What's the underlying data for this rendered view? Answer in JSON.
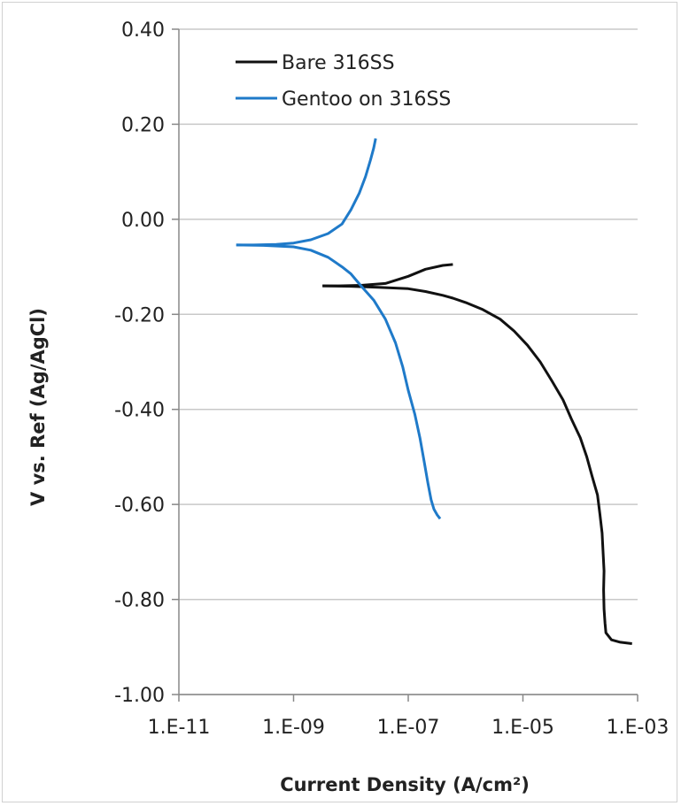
{
  "chart_data": {
    "type": "line",
    "title": "",
    "xlabel": "Current Density (A/cm²)",
    "ylabel": "V vs. Ref (Ag/AgCl)",
    "x_scale": "log",
    "xlim": [
      1e-11,
      0.001
    ],
    "ylim": [
      -1.0,
      0.4
    ],
    "x_ticks": [
      1e-11,
      1e-09,
      1e-07,
      1e-05,
      0.001
    ],
    "x_tick_labels": [
      "1.E-11",
      "1.E-09",
      "1.E-07",
      "1.E-05",
      "1.E-03"
    ],
    "y_ticks": [
      0.4,
      0.2,
      0.0,
      -0.2,
      -0.4,
      -0.6,
      -0.8,
      -1.0
    ],
    "y_tick_labels": [
      "0.40",
      "0.20",
      "0.00",
      "-0.20",
      "-0.40",
      "-0.60",
      "-0.80",
      "-1.00"
    ],
    "grid": "horizontal",
    "legend_position": "top-left",
    "series": [
      {
        "name": "Bare 316SS",
        "color": "#111111",
        "branches": [
          {
            "x": [
              3.2e-09,
              6e-09,
              1.5e-08,
              4e-08,
              1e-07,
              2e-07,
              4e-07,
              6e-07
            ],
            "y": [
              -0.14,
              -0.14,
              -0.139,
              -0.135,
              -0.12,
              -0.105,
              -0.097,
              -0.095
            ]
          },
          {
            "x": [
              3.2e-09,
              1e-08,
              3e-08,
              1e-07,
              2e-07,
              4e-07,
              6e-07,
              1e-06,
              2e-06,
              4e-06,
              7e-06,
              1.2e-05,
              2e-05,
              3.2e-05,
              5e-05,
              7e-05,
              0.0001,
              0.00013,
              0.00016,
              0.0002,
              0.00022,
              0.00024,
              0.00025,
              0.00026,
              0.000255,
              0.00026,
              0.00027,
              0.00028,
              0.00035,
              0.0005,
              0.0008
            ],
            "y": [
              -0.14,
              -0.141,
              -0.143,
              -0.146,
              -0.152,
              -0.16,
              -0.166,
              -0.175,
              -0.19,
              -0.21,
              -0.235,
              -0.265,
              -0.3,
              -0.34,
              -0.38,
              -0.42,
              -0.46,
              -0.5,
              -0.54,
              -0.58,
              -0.62,
              -0.66,
              -0.7,
              -0.74,
              -0.78,
              -0.82,
              -0.85,
              -0.87,
              -0.885,
              -0.89,
              -0.893
            ]
          }
        ]
      },
      {
        "name": "Gentoo on 316SS",
        "color": "#1f7ac9",
        "branches": [
          {
            "x": [
              1e-10,
              2e-10,
              5e-10,
              1e-09,
              2e-09,
              4e-09,
              7e-09,
              1e-08,
              1.4e-08,
              1.8e-08,
              2.2e-08,
              2.5e-08,
              2.7e-08
            ],
            "y": [
              -0.054,
              -0.054,
              -0.053,
              -0.05,
              -0.043,
              -0.03,
              -0.01,
              0.02,
              0.055,
              0.09,
              0.125,
              0.15,
              0.17
            ]
          },
          {
            "x": [
              1e-10,
              3e-10,
              1e-09,
              2e-09,
              4e-09,
              7e-09,
              1e-08,
              1.5e-08,
              2.5e-08,
              4e-08,
              6e-08,
              8e-08,
              1e-07,
              1.3e-07,
              1.6e-07,
              1.9e-07,
              2.2e-07,
              2.5e-07,
              2.8e-07,
              3.2e-07,
              3.6e-07
            ],
            "y": [
              -0.054,
              -0.055,
              -0.058,
              -0.065,
              -0.08,
              -0.1,
              -0.115,
              -0.14,
              -0.17,
              -0.21,
              -0.26,
              -0.31,
              -0.36,
              -0.41,
              -0.46,
              -0.51,
              -0.555,
              -0.59,
              -0.61,
              -0.622,
              -0.63
            ]
          }
        ]
      }
    ]
  }
}
